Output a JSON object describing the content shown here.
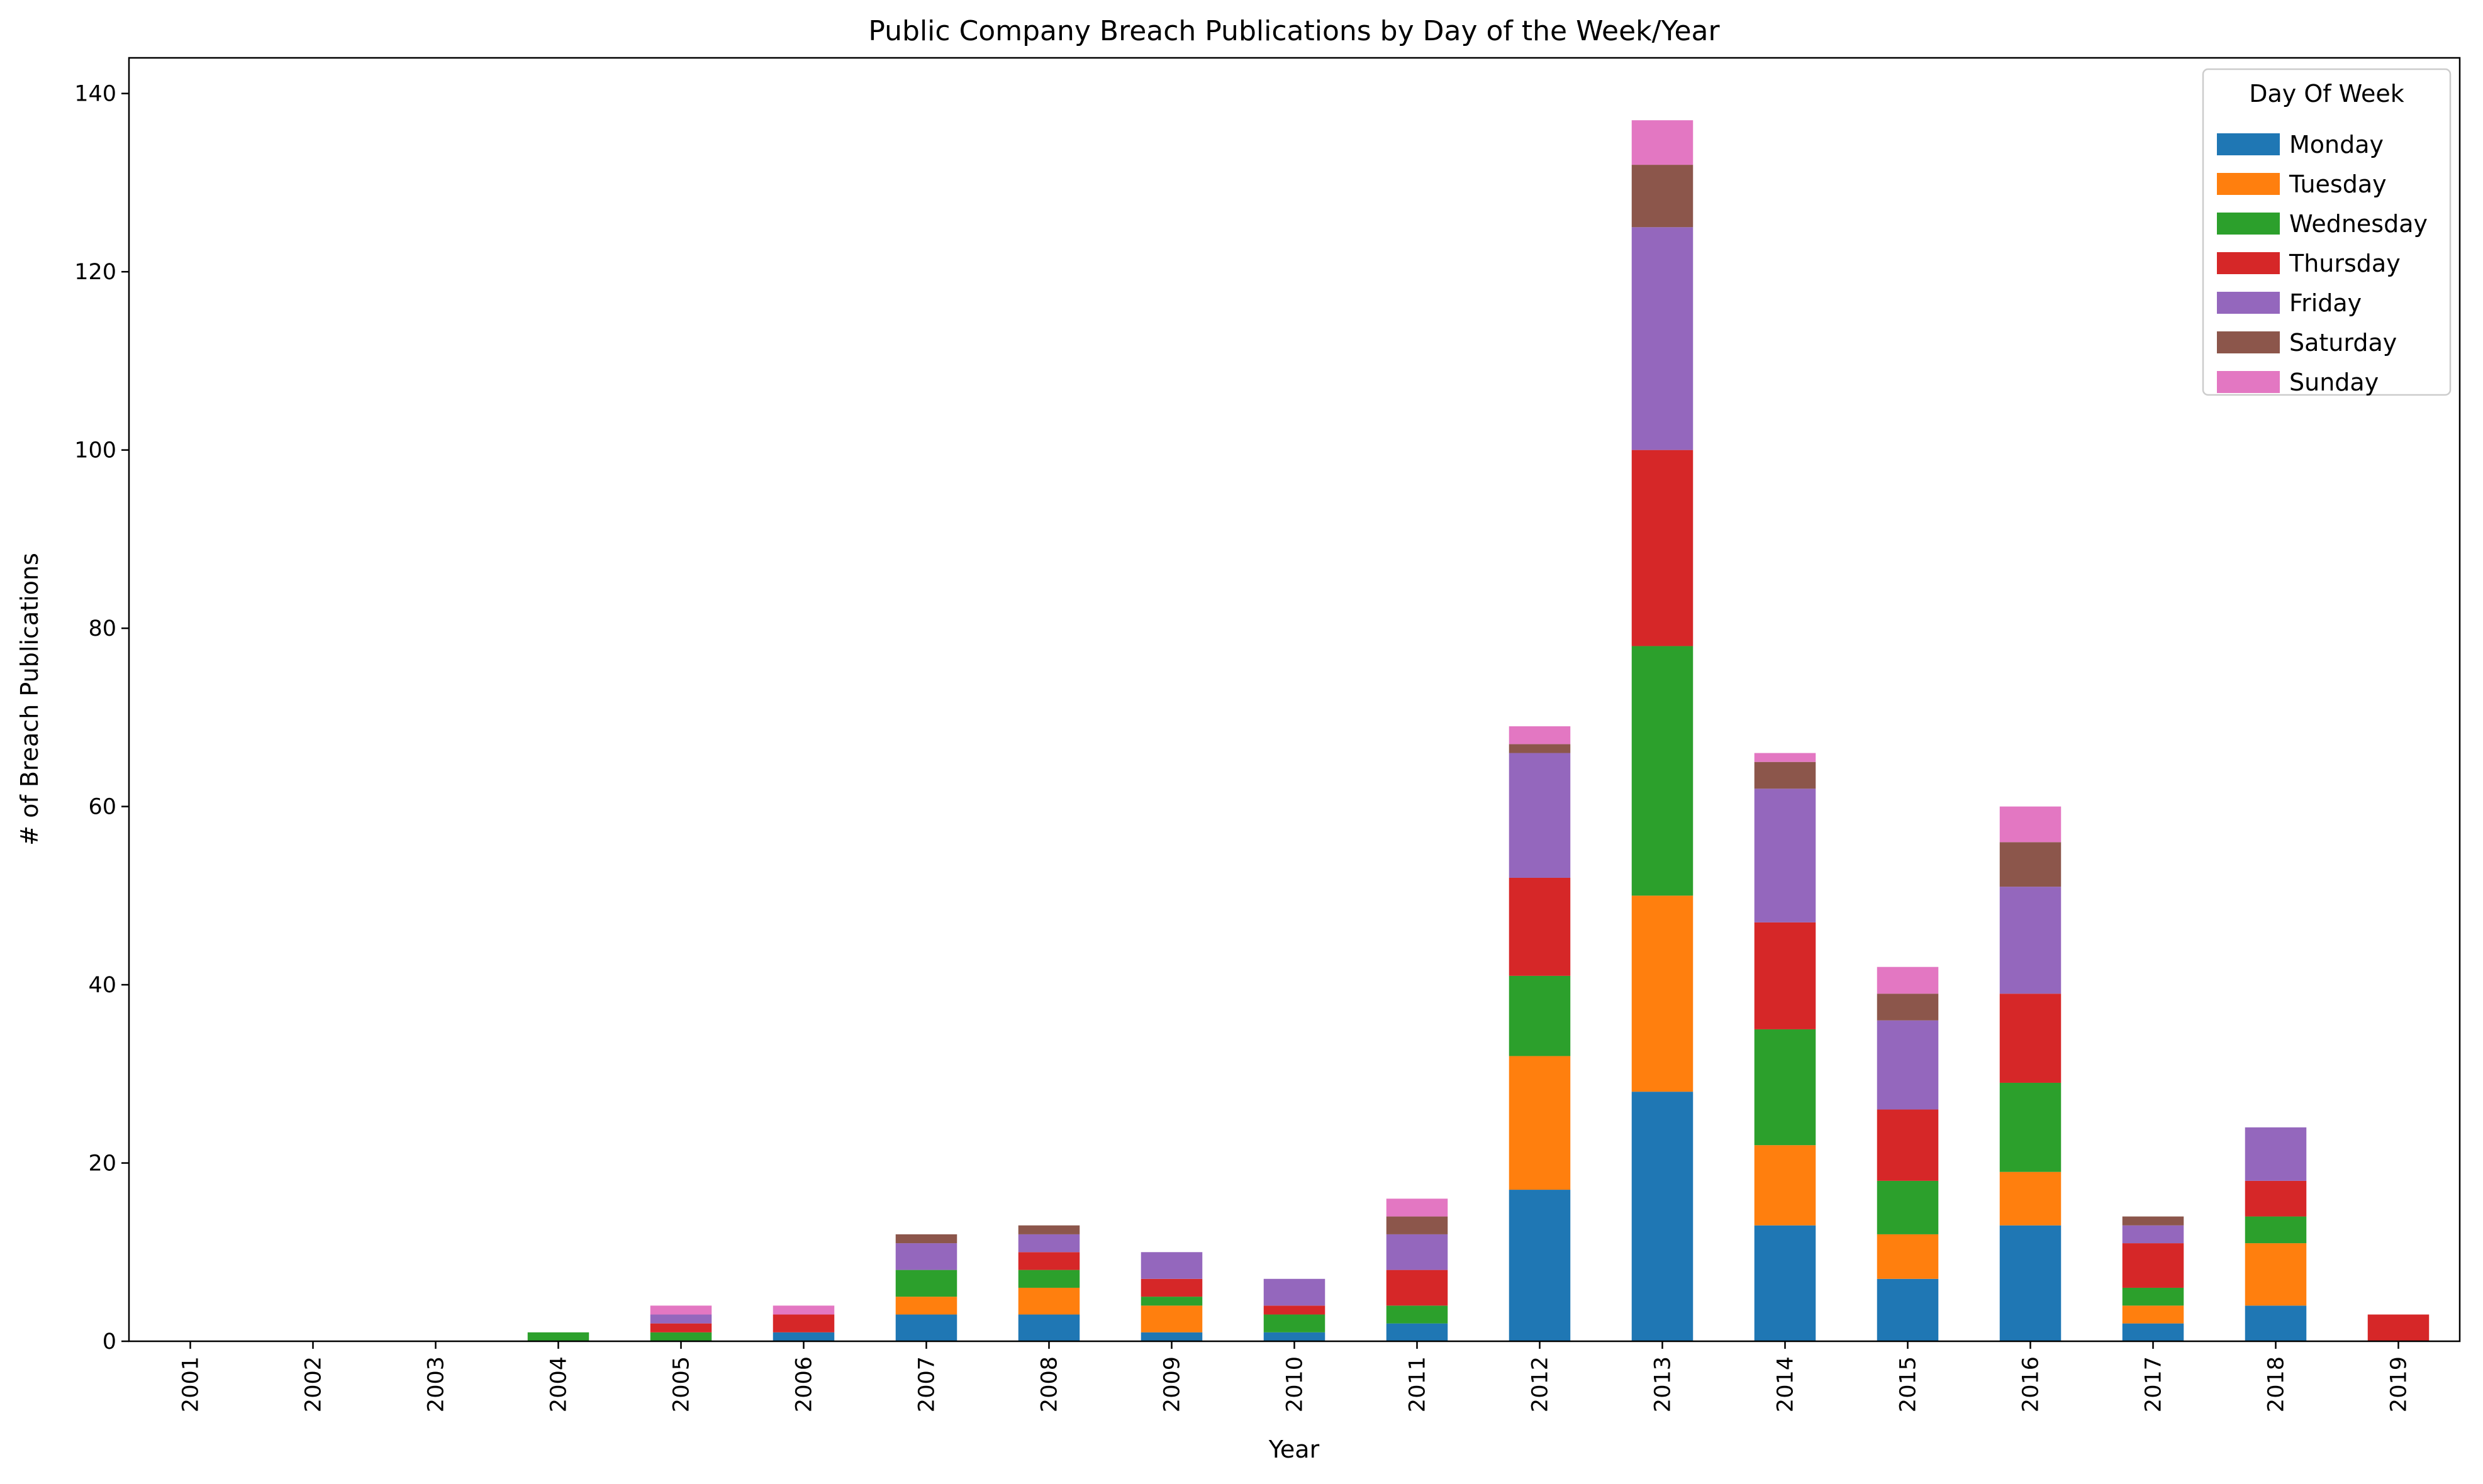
{
  "chart_data": {
    "type": "bar",
    "stacked": true,
    "title": "Public Company Breach Publications by Day of the Week/Year",
    "xlabel": "Year",
    "ylabel": "# of Breach Publications",
    "ylim": [
      0,
      144
    ],
    "yticks": [
      0,
      20,
      40,
      60,
      80,
      100,
      120,
      140
    ],
    "grid": false,
    "legend": {
      "title": "Day Of Week",
      "placement": "top-right"
    },
    "categories": [
      "2001",
      "2002",
      "2003",
      "2004",
      "2005",
      "2006",
      "2007",
      "2008",
      "2009",
      "2010",
      "2011",
      "2012",
      "2013",
      "2014",
      "2015",
      "2016",
      "2017",
      "2018",
      "2019"
    ],
    "series": [
      {
        "name": "Monday",
        "color": "#1f77b4",
        "values": [
          0,
          0,
          0,
          0,
          0,
          1,
          3,
          3,
          1,
          1,
          2,
          17,
          28,
          13,
          7,
          13,
          2,
          4,
          0
        ]
      },
      {
        "name": "Tuesday",
        "color": "#ff7f0e",
        "values": [
          0,
          0,
          0,
          0,
          0,
          0,
          2,
          3,
          3,
          0,
          0,
          15,
          22,
          9,
          5,
          6,
          2,
          7,
          0
        ]
      },
      {
        "name": "Wednesday",
        "color": "#2ca02c",
        "values": [
          0,
          0,
          0,
          1,
          1,
          0,
          3,
          2,
          1,
          2,
          2,
          9,
          28,
          13,
          6,
          10,
          2,
          3,
          0
        ]
      },
      {
        "name": "Thursday",
        "color": "#d62728",
        "values": [
          0,
          0,
          0,
          0,
          1,
          2,
          0,
          2,
          2,
          1,
          4,
          11,
          22,
          12,
          8,
          10,
          5,
          4,
          3
        ]
      },
      {
        "name": "Friday",
        "color": "#9467bd",
        "values": [
          0,
          0,
          0,
          0,
          1,
          0,
          3,
          2,
          3,
          3,
          4,
          14,
          25,
          15,
          10,
          12,
          2,
          6,
          0
        ]
      },
      {
        "name": "Saturday",
        "color": "#8c564b",
        "values": [
          0,
          0,
          0,
          0,
          0,
          0,
          1,
          1,
          0,
          0,
          2,
          1,
          7,
          3,
          3,
          5,
          1,
          0,
          0
        ]
      },
      {
        "name": "Sunday",
        "color": "#e377c2",
        "values": [
          0,
          0,
          0,
          0,
          1,
          1,
          0,
          0,
          0,
          0,
          2,
          2,
          5,
          1,
          3,
          4,
          0,
          0,
          0
        ]
      }
    ]
  }
}
